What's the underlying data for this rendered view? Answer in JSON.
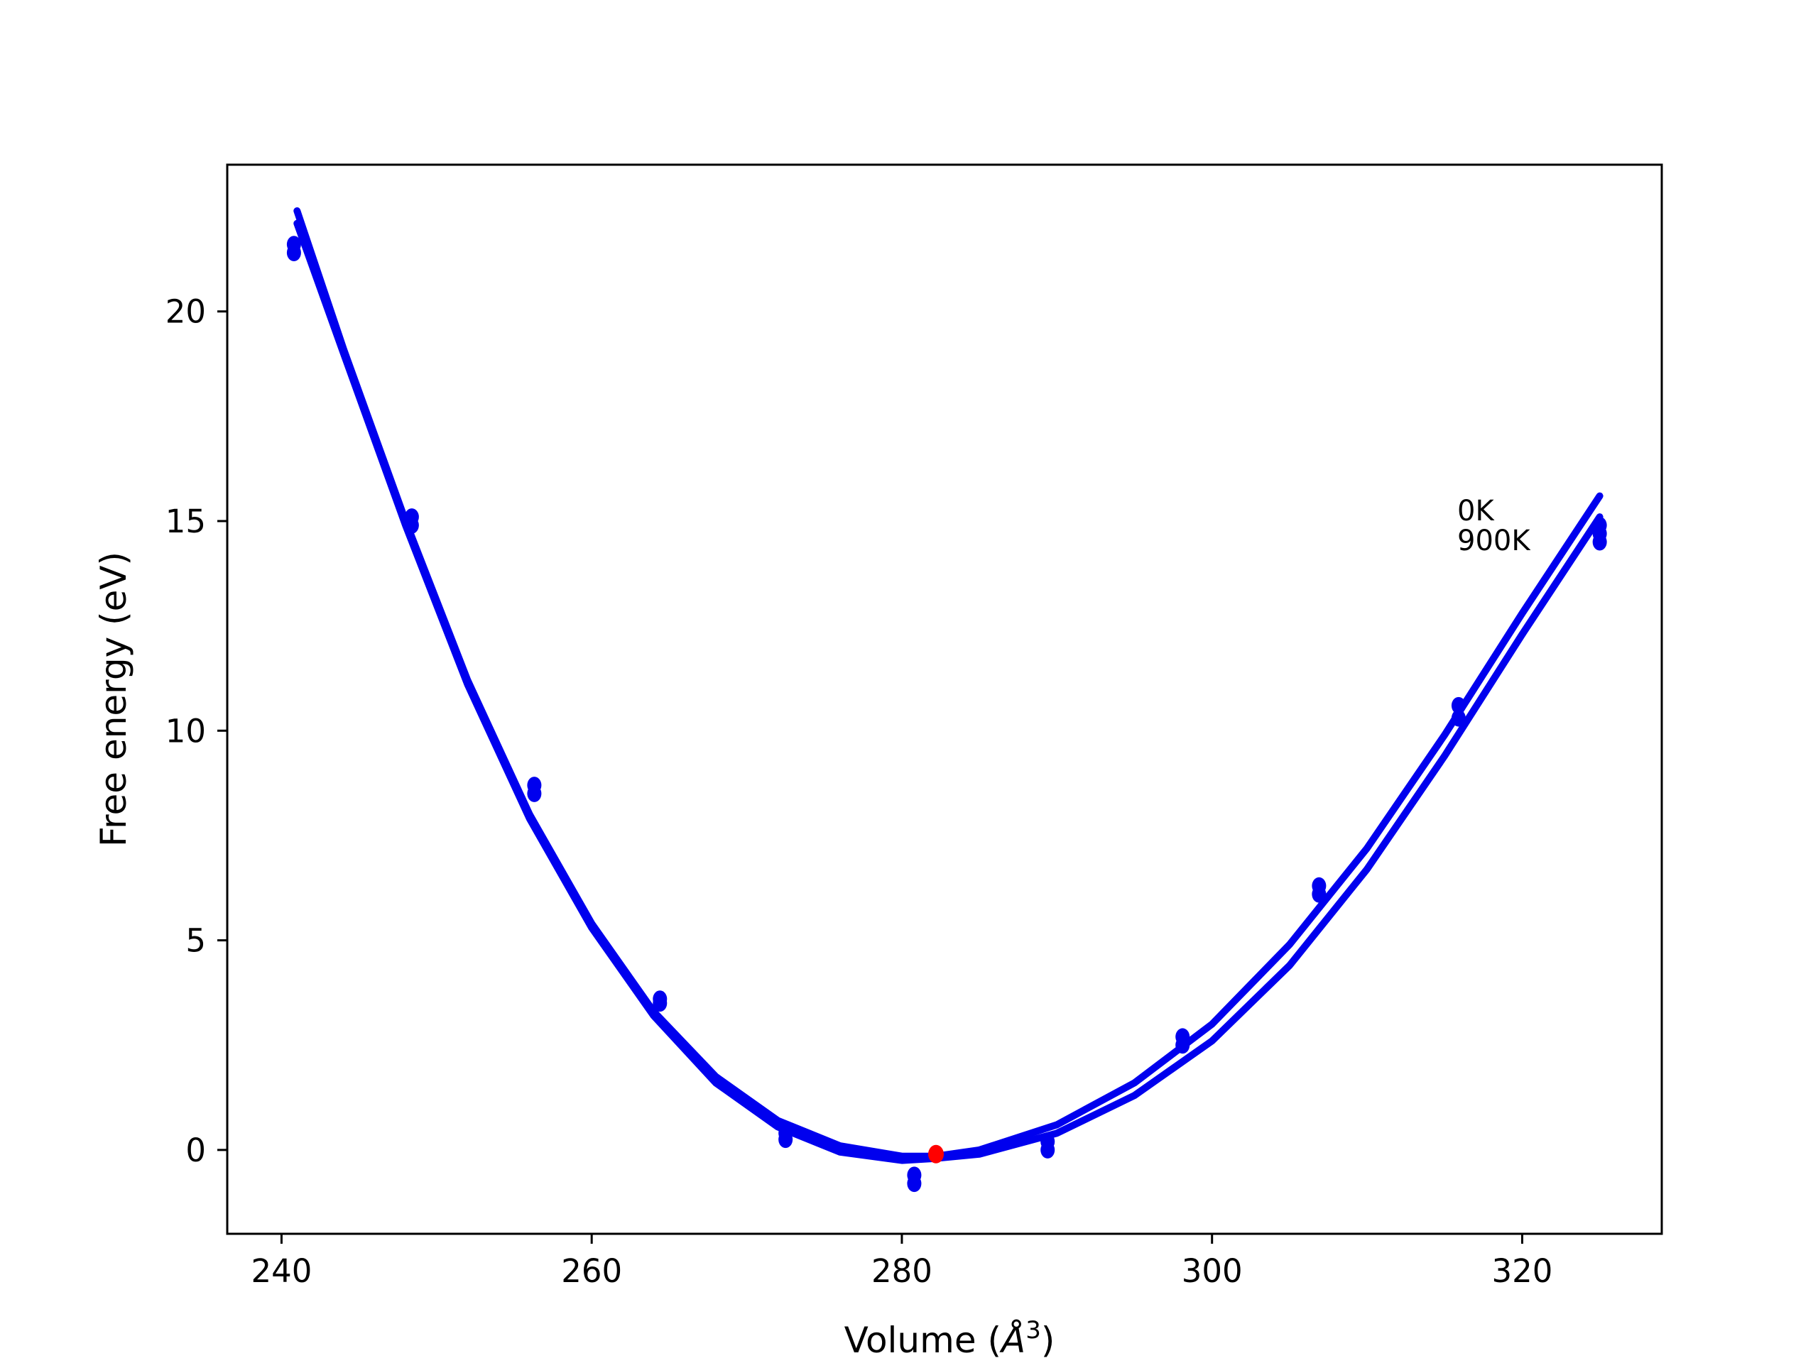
{
  "chart_data": {
    "type": "line",
    "xlabel": "Volume (Å³)",
    "xlabel_main": "Volume (",
    "xlabel_unit": "Å",
    "xlabel_exp": "3",
    "xlabel_close": ")",
    "ylabel": "Free energy (eV)",
    "xlim": [
      236.5,
      329
    ],
    "ylim": [
      -2,
      23.5
    ],
    "xticks": [
      240,
      260,
      280,
      300,
      320
    ],
    "yticks": [
      0,
      5,
      10,
      15,
      20
    ],
    "grid": false,
    "line_color": "#0000ee",
    "highlight_color": "#ff0000",
    "annotations": [
      "0K",
      "900K"
    ],
    "fit_curves": [
      {
        "name": "0K",
        "x": [
          241,
          244,
          248,
          252,
          256,
          260,
          264,
          268,
          272,
          276,
          280,
          282.2,
          285,
          290,
          295,
          300,
          305,
          310,
          315,
          320,
          325
        ],
        "y": [
          22.4,
          19.1,
          15.0,
          11.2,
          8.0,
          5.4,
          3.3,
          1.75,
          0.7,
          0.1,
          -0.15,
          -0.15,
          0.0,
          0.6,
          1.6,
          3.0,
          4.9,
          7.2,
          9.9,
          12.8,
          15.6
        ]
      },
      {
        "name": "900K",
        "x": [
          241,
          244,
          248,
          252,
          256,
          260,
          264,
          268,
          272,
          276,
          280,
          282.2,
          285,
          290,
          295,
          300,
          305,
          310,
          315,
          320,
          325
        ],
        "y": [
          22.1,
          19.0,
          14.9,
          11.1,
          7.9,
          5.3,
          3.2,
          1.6,
          0.55,
          -0.05,
          -0.25,
          -0.2,
          -0.1,
          0.4,
          1.3,
          2.6,
          4.4,
          6.7,
          9.4,
          12.3,
          15.1
        ]
      }
    ],
    "points": {
      "name": "data",
      "x": [
        240.8,
        240.8,
        248.4,
        248.4,
        256.3,
        256.3,
        264.4,
        264.4,
        272.5,
        272.5,
        280.8,
        280.8,
        289.4,
        289.4,
        298.1,
        298.1,
        306.9,
        306.9,
        315.9,
        315.9,
        325.0,
        325.0,
        325.0
      ],
      "y": [
        21.6,
        21.4,
        15.1,
        14.9,
        8.7,
        8.5,
        3.6,
        3.5,
        0.4,
        0.25,
        -0.6,
        -0.8,
        0.2,
        0.0,
        2.7,
        2.5,
        6.3,
        6.1,
        10.6,
        10.3,
        14.9,
        14.7,
        14.5
      ]
    },
    "minimum": {
      "x": 282.2,
      "y": -0.1
    }
  }
}
